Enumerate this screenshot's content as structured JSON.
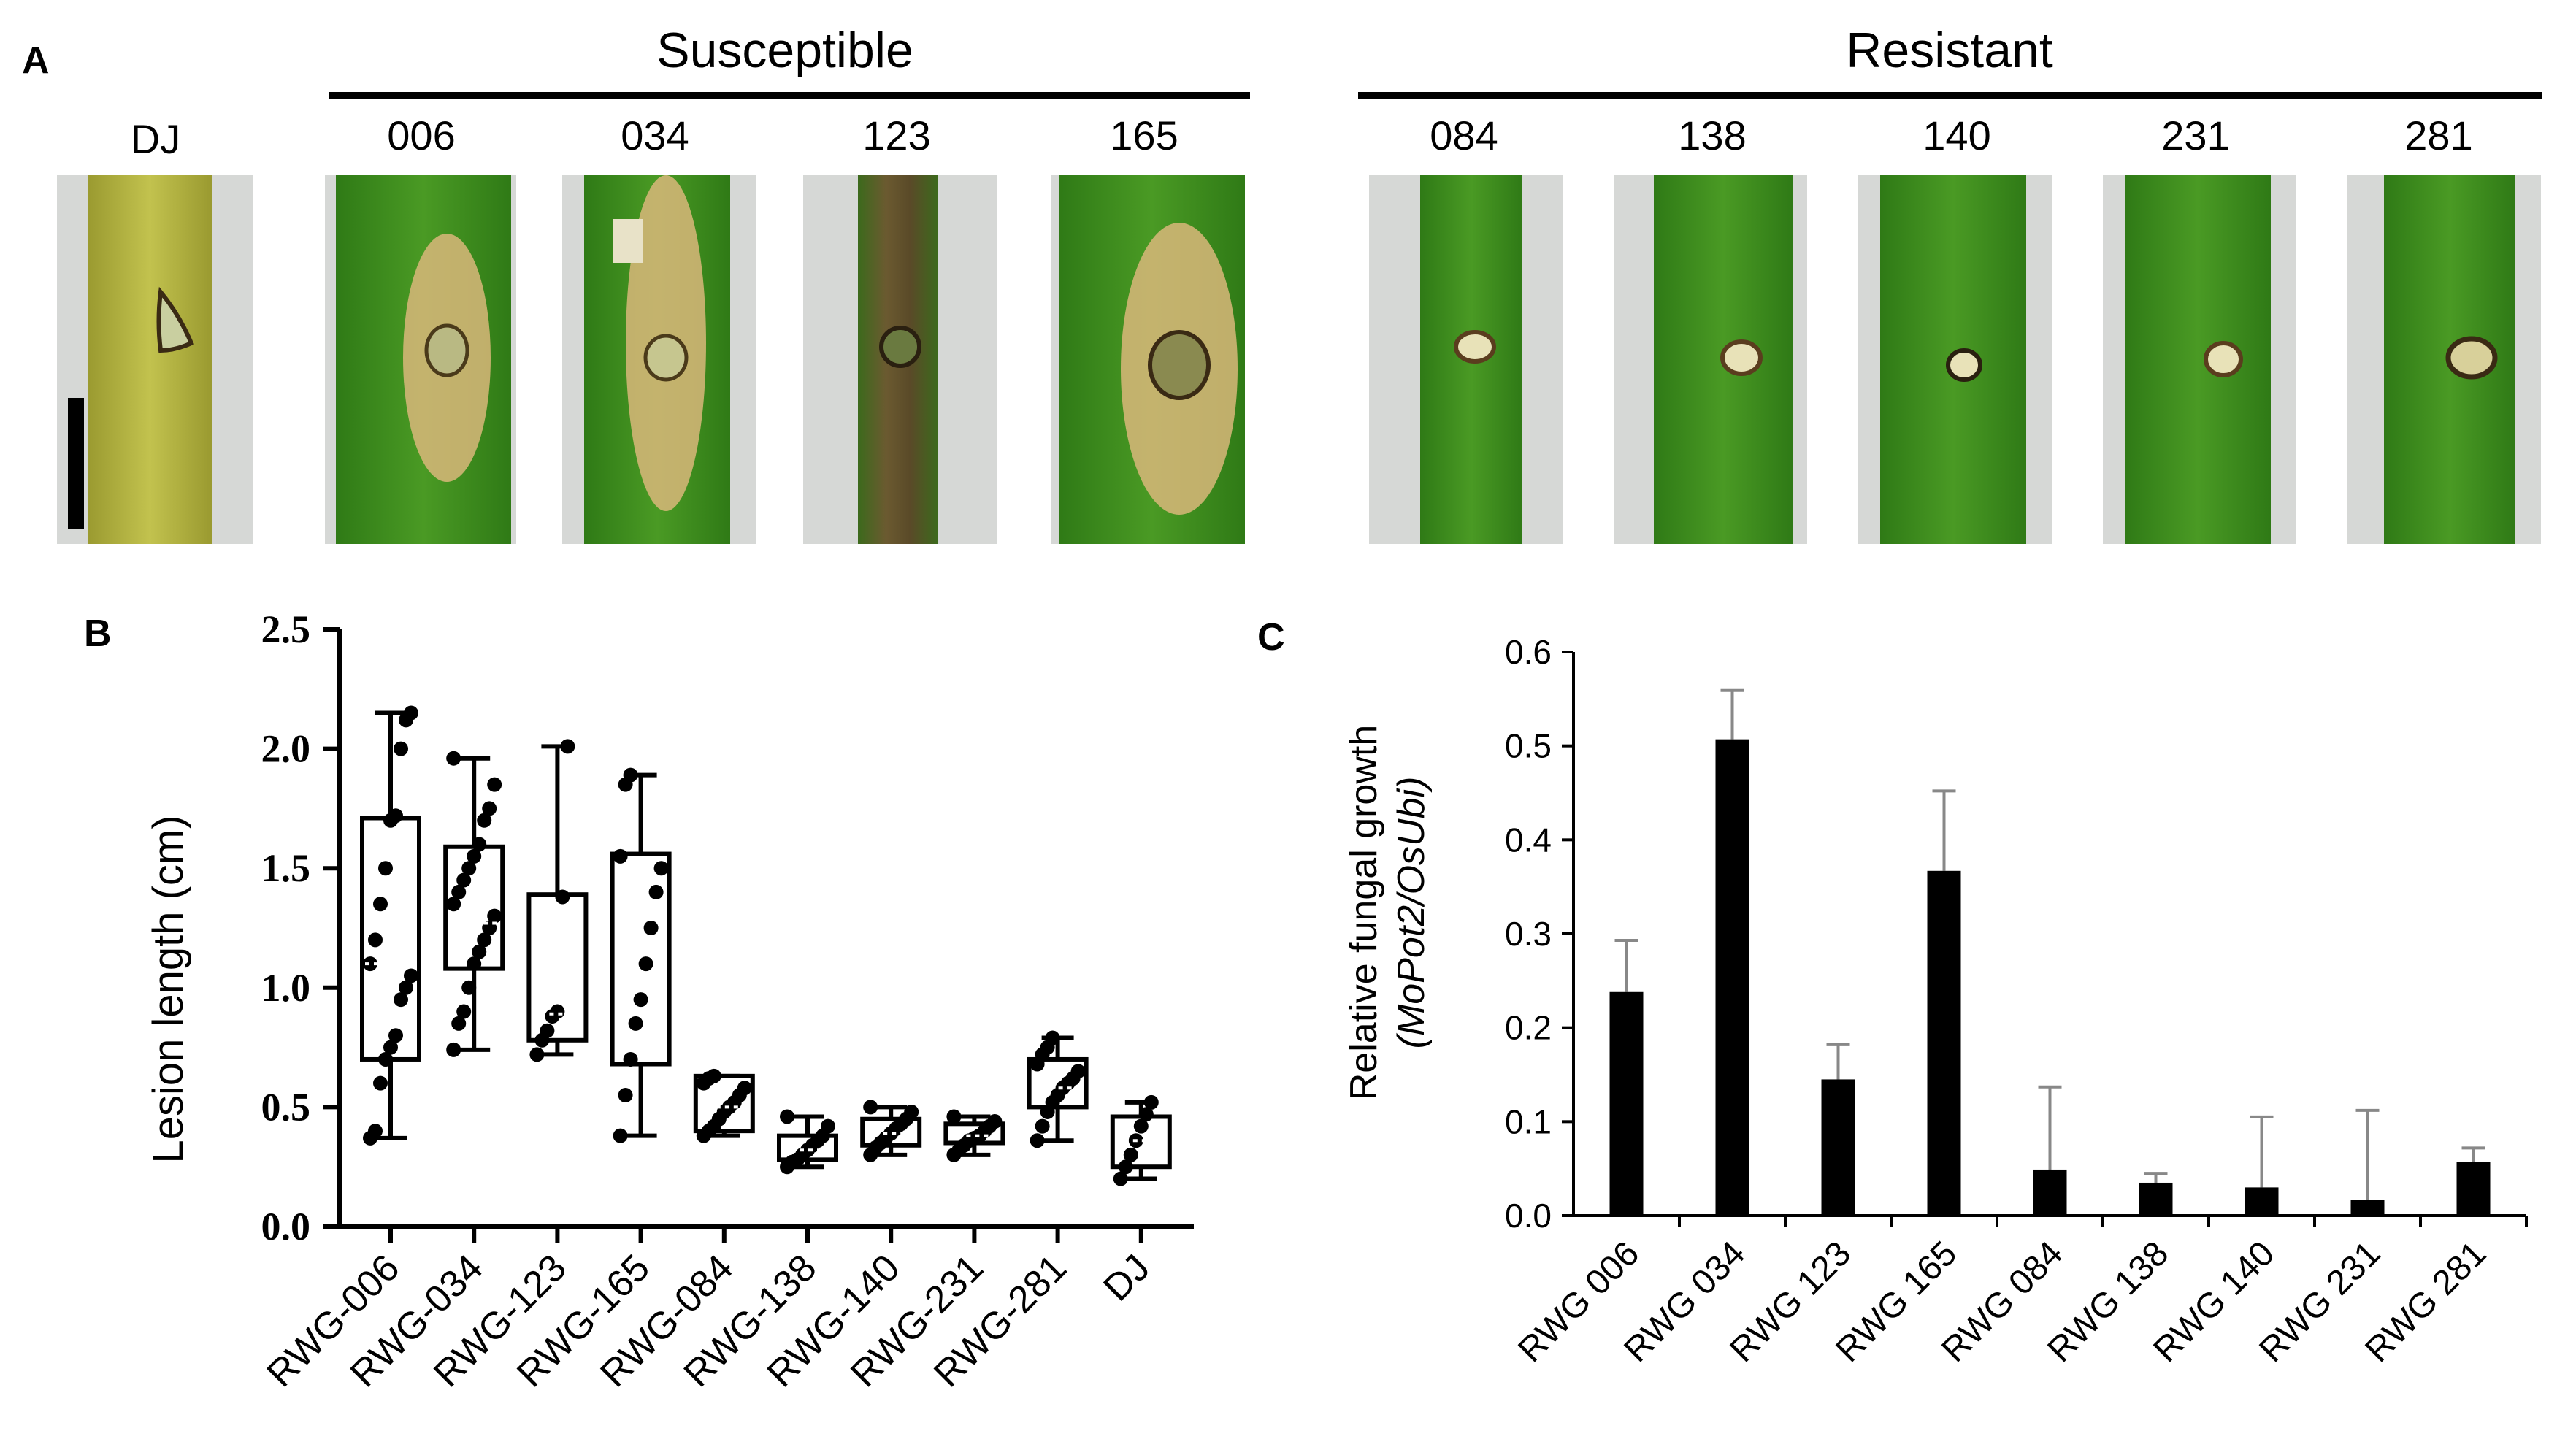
{
  "panel_a": {
    "letter": "A",
    "control_label": "DJ",
    "groups": [
      {
        "title": "Susceptible",
        "samples": [
          "006",
          "034",
          "123",
          "165"
        ]
      },
      {
        "title": "Resistant",
        "samples": [
          "084",
          "138",
          "140",
          "231",
          "281"
        ]
      }
    ],
    "leaf_colors": {
      "green": "#3f8f1e",
      "yellow_green": "#b5b543",
      "background": "#d6d8d6",
      "lesion_tan": "#d9b77a",
      "lesion_dark": "#5a3d1e"
    }
  },
  "chart_data": [
    {
      "type": "box",
      "panel": "B",
      "title": "",
      "xlabel": "",
      "ylabel": "Lesion length (cm)",
      "ylim": [
        0,
        2.5
      ],
      "yticks": [
        "0.0",
        "0.5",
        "1.0",
        "1.5",
        "2.0",
        "2.5"
      ],
      "categories": [
        "RWG-006",
        "RWG-034",
        "RWG-123",
        "RWG-165",
        "RWG-084",
        "RWG-138",
        "RWG-140",
        "RWG-231",
        "RWG-281",
        "DJ"
      ],
      "boxes": [
        {
          "min": 0.37,
          "q1": 0.7,
          "median": 1.1,
          "q3": 1.71,
          "max": 2.15
        },
        {
          "min": 0.74,
          "q1": 1.08,
          "median": 1.27,
          "q3": 1.59,
          "max": 1.96
        },
        {
          "min": 0.72,
          "q1": 0.78,
          "median": 0.89,
          "q3": 1.39,
          "max": 2.01
        },
        {
          "min": 0.38,
          "q1": 0.68,
          "median": 1.17,
          "q3": 1.56,
          "max": 1.89
        },
        {
          "min": 0.38,
          "q1": 0.4,
          "median": 0.5,
          "q3": 0.63,
          "max": 0.63
        },
        {
          "min": 0.25,
          "q1": 0.28,
          "median": 0.32,
          "q3": 0.38,
          "max": 0.46
        },
        {
          "min": 0.3,
          "q1": 0.34,
          "median": 0.39,
          "q3": 0.45,
          "max": 0.5
        },
        {
          "min": 0.3,
          "q1": 0.35,
          "median": 0.38,
          "q3": 0.43,
          "max": 0.46
        },
        {
          "min": 0.36,
          "q1": 0.5,
          "median": 0.58,
          "q3": 0.7,
          "max": 0.79
        },
        {
          "min": 0.2,
          "q1": 0.25,
          "median": 0.36,
          "q3": 0.46,
          "max": 0.52
        }
      ],
      "points": [
        [
          0.37,
          0.4,
          0.6,
          0.7,
          0.75,
          0.8,
          0.95,
          1.0,
          1.05,
          1.1,
          1.2,
          1.35,
          1.5,
          1.7,
          1.72,
          2.0,
          2.12,
          2.15
        ],
        [
          0.74,
          0.85,
          0.9,
          1.0,
          1.1,
          1.15,
          1.2,
          1.25,
          1.3,
          1.35,
          1.4,
          1.45,
          1.5,
          1.55,
          1.6,
          1.7,
          1.75,
          1.85,
          1.96
        ],
        [
          0.72,
          0.78,
          0.82,
          0.88,
          0.9,
          1.38,
          2.01
        ],
        [
          0.38,
          0.55,
          0.7,
          0.85,
          0.95,
          1.1,
          1.25,
          1.4,
          1.5,
          1.55,
          1.85,
          1.89
        ],
        [
          0.38,
          0.4,
          0.42,
          0.45,
          0.48,
          0.5,
          0.52,
          0.55,
          0.58,
          0.6,
          0.62,
          0.63
        ],
        [
          0.25,
          0.27,
          0.28,
          0.3,
          0.32,
          0.34,
          0.36,
          0.38,
          0.42,
          0.46
        ],
        [
          0.3,
          0.33,
          0.35,
          0.37,
          0.39,
          0.41,
          0.43,
          0.45,
          0.48,
          0.5
        ],
        [
          0.3,
          0.32,
          0.34,
          0.36,
          0.37,
          0.38,
          0.4,
          0.42,
          0.44,
          0.46
        ],
        [
          0.36,
          0.42,
          0.48,
          0.52,
          0.55,
          0.58,
          0.6,
          0.62,
          0.65,
          0.68,
          0.72,
          0.75,
          0.79
        ],
        [
          0.2,
          0.25,
          0.3,
          0.36,
          0.42,
          0.47,
          0.52
        ]
      ]
    },
    {
      "type": "bar",
      "panel": "C",
      "title": "",
      "xlabel": "",
      "ylabel_line1": "Relative fungal growth",
      "ylabel_line2": "(MoPot2/OsUbi)",
      "ylim": [
        0,
        0.6
      ],
      "yticks": [
        "0.0",
        "0.1",
        "0.2",
        "0.3",
        "0.4",
        "0.5",
        "0.6"
      ],
      "categories": [
        "RWG 006",
        "RWG 034",
        "RWG 123",
        "RWG 165",
        "RWG 084",
        "RWG 138",
        "RWG 140",
        "RWG 231",
        "RWG 281"
      ],
      "values": [
        0.238,
        0.507,
        0.145,
        0.367,
        0.049,
        0.035,
        0.03,
        0.017,
        0.057
      ],
      "errors": [
        0.055,
        0.052,
        0.037,
        0.085,
        0.088,
        0.01,
        0.075,
        0.095,
        0.015
      ]
    }
  ],
  "labels": {
    "panel_b_letter": "B",
    "panel_c_letter": "C"
  }
}
